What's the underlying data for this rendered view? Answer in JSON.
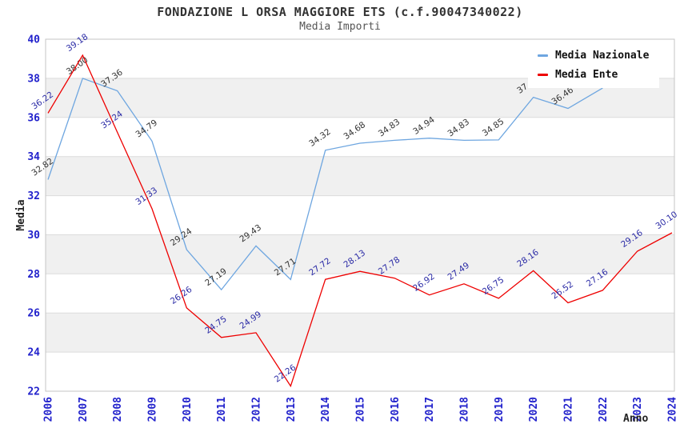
{
  "header": {
    "title": "FONDAZIONE L ORSA MAGGIORE ETS (c.f.90047340022)",
    "subtitle": "Media Importi"
  },
  "legend": {
    "items": [
      {
        "label": "Media Nazionale",
        "color": "#6EA6E0"
      },
      {
        "label": "Media Ente",
        "color": "#EE0000"
      }
    ]
  },
  "chart_data": {
    "type": "line",
    "title": "FONDAZIONE L ORSA MAGGIORE ETS (c.f.90047340022)",
    "subtitle": "Media Importi",
    "xlabel": "Anno",
    "ylabel": "Media",
    "x": [
      2006,
      2007,
      2008,
      2009,
      2010,
      2011,
      2012,
      2013,
      2014,
      2015,
      2016,
      2017,
      2018,
      2019,
      2020,
      2021,
      2022,
      2023,
      2024
    ],
    "ylim": [
      22,
      40
    ],
    "ytick_step": 2,
    "grid": true,
    "band_color": "#F0F0F0",
    "gridline_color": "#DCDCDC",
    "border_color": "#C4C4C4",
    "axis_tick_color": "#2222CC",
    "legend_position": "top-right",
    "series": [
      {
        "name": "Media Nazionale",
        "color": "#6EA6E0",
        "label_color": "#333333",
        "values": [
          32.82,
          38.0,
          37.36,
          34.79,
          29.24,
          27.19,
          29.43,
          27.71,
          34.32,
          34.68,
          34.83,
          34.94,
          34.83,
          34.85,
          37.03,
          36.46,
          37.5,
          null,
          null
        ]
      },
      {
        "name": "Media Ente",
        "color": "#EE0000",
        "label_color": "#2B2BA6",
        "values": [
          36.22,
          39.18,
          35.24,
          31.33,
          26.26,
          24.75,
          24.99,
          22.26,
          27.72,
          28.13,
          27.78,
          26.92,
          27.49,
          26.75,
          28.16,
          26.52,
          27.16,
          29.16,
          30.1
        ]
      }
    ]
  }
}
